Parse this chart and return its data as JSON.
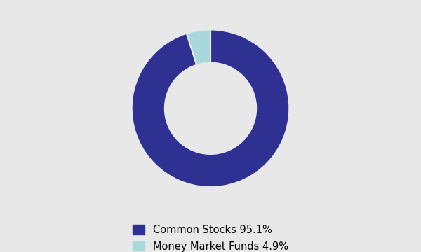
{
  "labels": [
    "Common Stocks 95.1%",
    "Money Market Funds 4.9%"
  ],
  "values": [
    95.1,
    4.9
  ],
  "colors": [
    "#2E3192",
    "#A8D8DC"
  ],
  "background_color": "#E8E8E8",
  "wedge_edge_color": "#E8E8E8",
  "donut_hole_ratio": 0.55,
  "legend_fontsize": 10.5,
  "figsize": [
    6.0,
    3.6
  ],
  "dpi": 100
}
